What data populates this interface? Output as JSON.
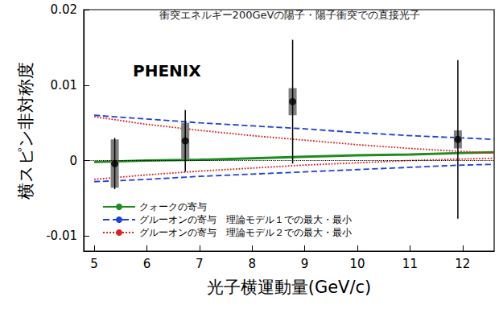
{
  "chart_data": {
    "type": "line",
    "title": "衝突エネルギー200GeVの陽子・陽子衝突での直接光子",
    "annotations": [
      "PHENIX"
    ],
    "xlabel": "光子横運動量(GeV/c)",
    "ylabel": "横スピン非対称度",
    "xlim": [
      4.8,
      12.6
    ],
    "xticks": [
      5,
      6,
      7,
      8,
      9,
      10,
      11,
      12
    ],
    "ylim": [
      -0.012,
      0.02
    ],
    "yticks": [
      -0.01,
      0,
      0.01,
      0.02
    ],
    "grid": false,
    "legend": "lower left",
    "reference_lines": [
      {
        "y": 0,
        "color": "#000000",
        "line_style": "dotted"
      }
    ],
    "series": [
      {
        "name": "クォークの寄与",
        "type": "line",
        "color": "#1e8c1e",
        "line_style": "solid",
        "x": [
          5,
          6,
          7,
          8,
          9,
          10,
          11,
          12,
          12.6
        ],
        "values": [
          -0.0002,
          0.0,
          0.0001,
          0.0003,
          0.0005,
          0.0007,
          0.0008,
          0.001,
          0.0011
        ]
      },
      {
        "name": "グルーオンの寄与　理論モデル１での最大・最小",
        "type": "line",
        "color": "#1f3fe0",
        "line_style": "dashed",
        "x": [
          5,
          6,
          7,
          8,
          9,
          10,
          11,
          12,
          12.6
        ],
        "values": [
          0.006,
          0.0055,
          0.005,
          0.0046,
          0.0042,
          0.0037,
          0.0033,
          0.003,
          0.0028
        ]
      },
      {
        "name": "グルーオンの寄与　理論モデル１での最大・最小",
        "type": "line",
        "color": "#1f3fe0",
        "line_style": "dashed",
        "x": [
          5,
          6,
          7,
          8,
          9,
          10,
          11,
          12,
          12.6
        ],
        "values": [
          -0.0028,
          -0.0025,
          -0.0021,
          -0.0018,
          -0.0015,
          -0.0012,
          -0.0009,
          -0.0006,
          -0.0005
        ]
      },
      {
        "name": "グルーオンの寄与　理論モデル２での最大・最小",
        "type": "line",
        "color": "#e02020",
        "line_style": "dotted",
        "x": [
          5,
          6,
          7,
          8,
          9,
          10,
          11,
          12,
          12.6
        ],
        "values": [
          0.0058,
          0.0048,
          0.004,
          0.0033,
          0.0027,
          0.0021,
          0.0016,
          0.0012,
          0.001
        ]
      },
      {
        "name": "グルーオンの寄与　理論モデル２での最大・最小",
        "type": "line",
        "color": "#e02020",
        "line_style": "dotted",
        "x": [
          5,
          6,
          7,
          8,
          9,
          10,
          11,
          12,
          12.6
        ],
        "values": [
          -0.0025,
          -0.0019,
          -0.0014,
          -0.001,
          -0.0006,
          -0.0003,
          0.0,
          0.0002,
          0.0003
        ]
      },
      {
        "type": "scatter",
        "color": "#000000",
        "marker": "circle",
        "x": [
          5.39,
          6.73,
          8.77,
          11.91
        ],
        "values": [
          -0.0004,
          0.0026,
          0.0078,
          0.0028
        ],
        "stat_errors": [
          0.0034,
          0.0041,
          0.0082,
          0.0105
        ],
        "syst_errors": [
          0.0032,
          0.0024,
          0.0018,
          0.0012
        ]
      }
    ]
  }
}
